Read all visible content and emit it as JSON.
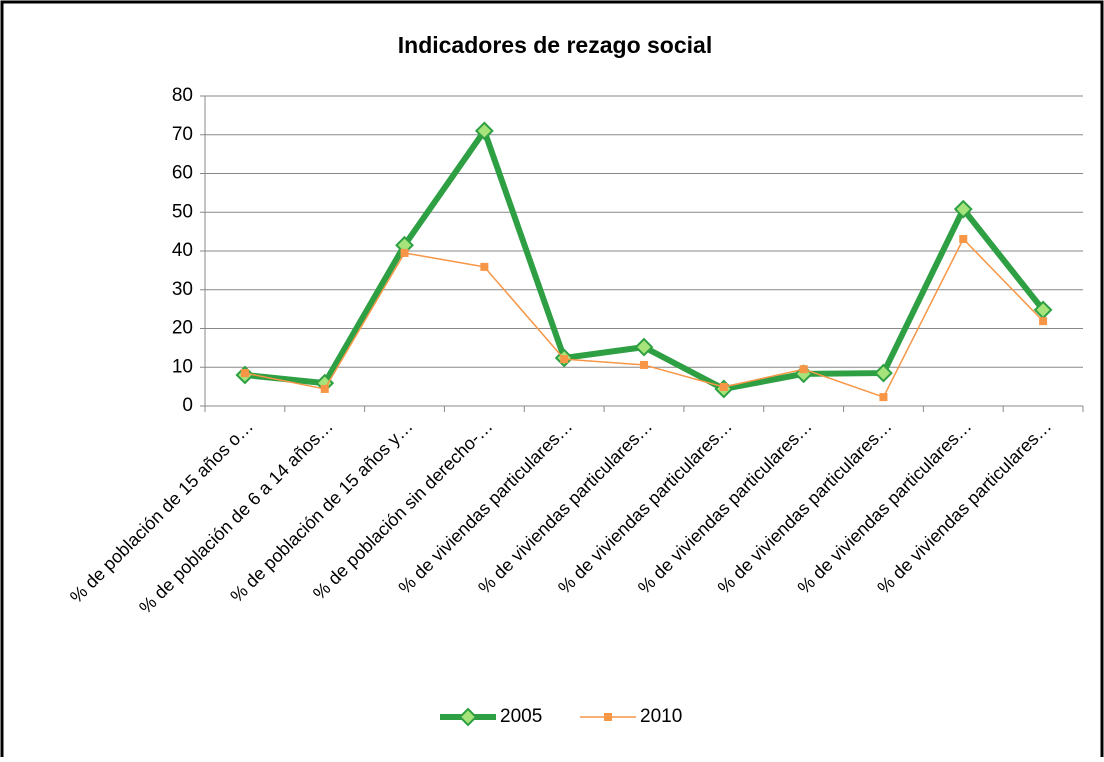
{
  "chart_data": {
    "type": "line",
    "title": "Indicadores de rezago social",
    "categories": [
      "% de población de 15 años o…",
      "% de población de 6 a 14 años…",
      "% de población de 15 años y…",
      "% de población sin derecho-…",
      "% de viviendas particulares…",
      "% de viviendas particulares…",
      "% de viviendas particulares…",
      "% de viviendas particulares…",
      "% de viviendas particulares…",
      "% de viviendas particulares…",
      "% de viviendas particulares…"
    ],
    "series": [
      {
        "name": "2005",
        "color": "#2ea043",
        "marker": "diamond",
        "values": [
          8.0,
          5.9,
          41.5,
          71.0,
          12.4,
          15.2,
          4.4,
          8.3,
          8.5,
          50.8,
          24.8
        ]
      },
      {
        "name": "2010",
        "color": "#f79646",
        "marker": "square",
        "values": [
          8.5,
          4.4,
          39.5,
          35.9,
          12.1,
          10.6,
          4.9,
          9.5,
          2.3,
          43.1,
          21.9
        ]
      }
    ],
    "ylim": [
      0,
      80
    ],
    "yticks": [
      0,
      10,
      20,
      30,
      40,
      50,
      60,
      70,
      80
    ],
    "grid": true,
    "legend": "bottom"
  }
}
